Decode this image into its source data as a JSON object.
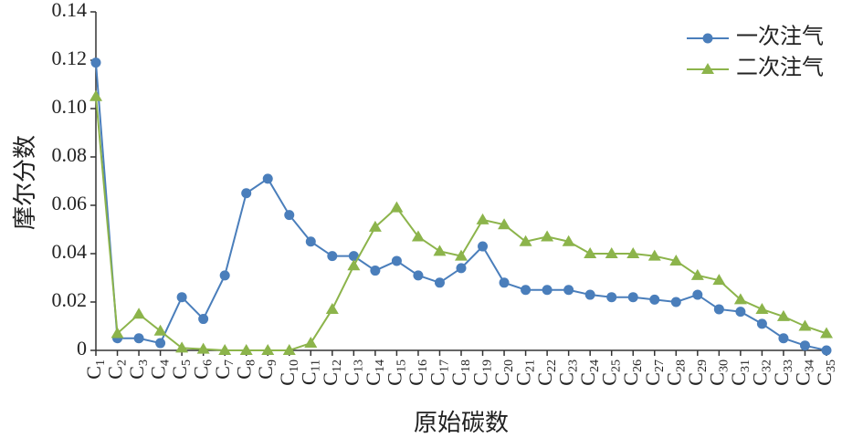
{
  "chart_data": {
    "type": "line",
    "xlabel": "原始碳数",
    "ylabel": "摩尔分数",
    "categories": [
      "C1",
      "C2",
      "C3",
      "C4",
      "C5",
      "C6",
      "C7",
      "C8",
      "C9",
      "C10",
      "C11",
      "C12",
      "C13",
      "C14",
      "C15",
      "C16",
      "C17",
      "C18",
      "C19",
      "C20",
      "C21",
      "C22",
      "C23",
      "C24",
      "C25",
      "C26",
      "C27",
      "C28",
      "C29",
      "C30",
      "C31",
      "C32",
      "C33",
      "C34",
      "C35"
    ],
    "series": [
      {
        "name": "一次注气",
        "color": "#4a7ebb",
        "marker": "circle",
        "values": [
          0.119,
          0.005,
          0.005,
          0.003,
          0.022,
          0.013,
          0.031,
          0.065,
          0.071,
          0.056,
          0.045,
          0.039,
          0.039,
          0.033,
          0.037,
          0.031,
          0.028,
          0.034,
          0.043,
          0.028,
          0.025,
          0.025,
          0.025,
          0.023,
          0.022,
          0.022,
          0.021,
          0.02,
          0.023,
          0.017,
          0.016,
          0.011,
          0.005,
          0.002,
          0
        ]
      },
      {
        "name": "二次注气",
        "color": "#8cb44b",
        "marker": "triangle",
        "values": [
          0.105,
          0.007,
          0.015,
          0.008,
          0.001,
          0.0005,
          0,
          0,
          0,
          0,
          0.003,
          0.017,
          0.035,
          0.051,
          0.059,
          0.047,
          0.041,
          0.039,
          0.054,
          0.052,
          0.045,
          0.047,
          0.045,
          0.04,
          0.04,
          0.04,
          0.039,
          0.037,
          0.031,
          0.029,
          0.021,
          0.017,
          0.014,
          0.01,
          0.007
        ]
      }
    ],
    "ylim": [
      0,
      0.14
    ],
    "yticks": [
      0,
      0.02,
      0.04,
      0.06,
      0.08,
      {
        "value": 0.1,
        "label": "0.10"
      },
      0.12,
      0.14
    ],
    "legend": "upper right"
  }
}
